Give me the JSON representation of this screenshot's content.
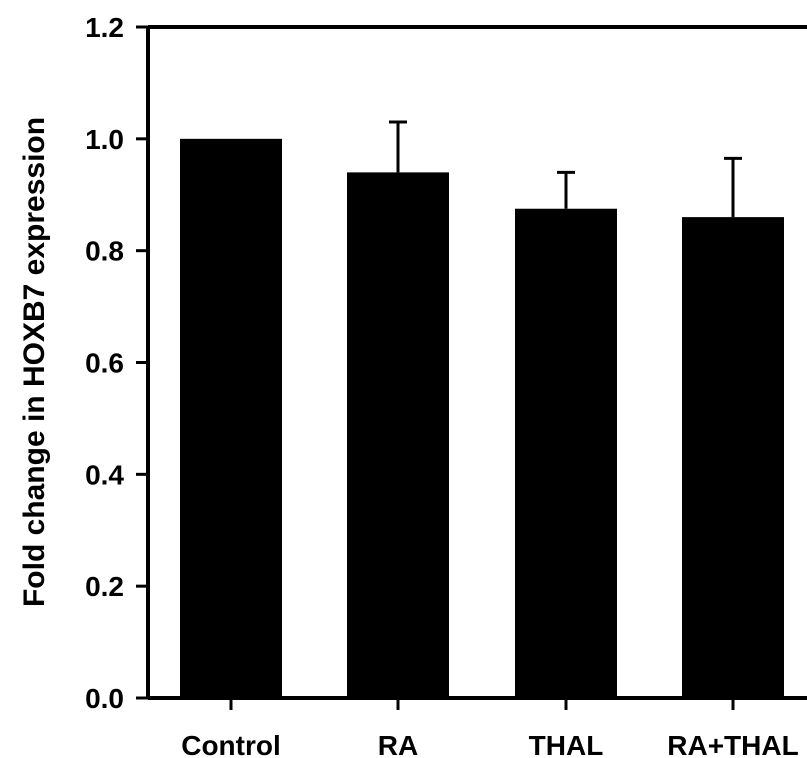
{
  "chart_data": {
    "type": "bar",
    "categories": [
      "Control",
      "RA",
      "THAL",
      "RA+THAL"
    ],
    "values": [
      1.0,
      0.94,
      0.875,
      0.86
    ],
    "errors": [
      0.0,
      0.09,
      0.065,
      0.105
    ],
    "ylabel": "Fold change in HOXB7 expression",
    "xlabel": "",
    "ylim": [
      0,
      1.2
    ],
    "yticks": [
      "0.0",
      "0.2",
      "0.4",
      "0.6",
      "0.8",
      "1.0",
      "1.2"
    ],
    "ytick_values": [
      0.0,
      0.2,
      0.4,
      0.6,
      0.8,
      1.0,
      1.2
    ],
    "bar_color": "#000000",
    "grid": false,
    "legend": "none"
  }
}
